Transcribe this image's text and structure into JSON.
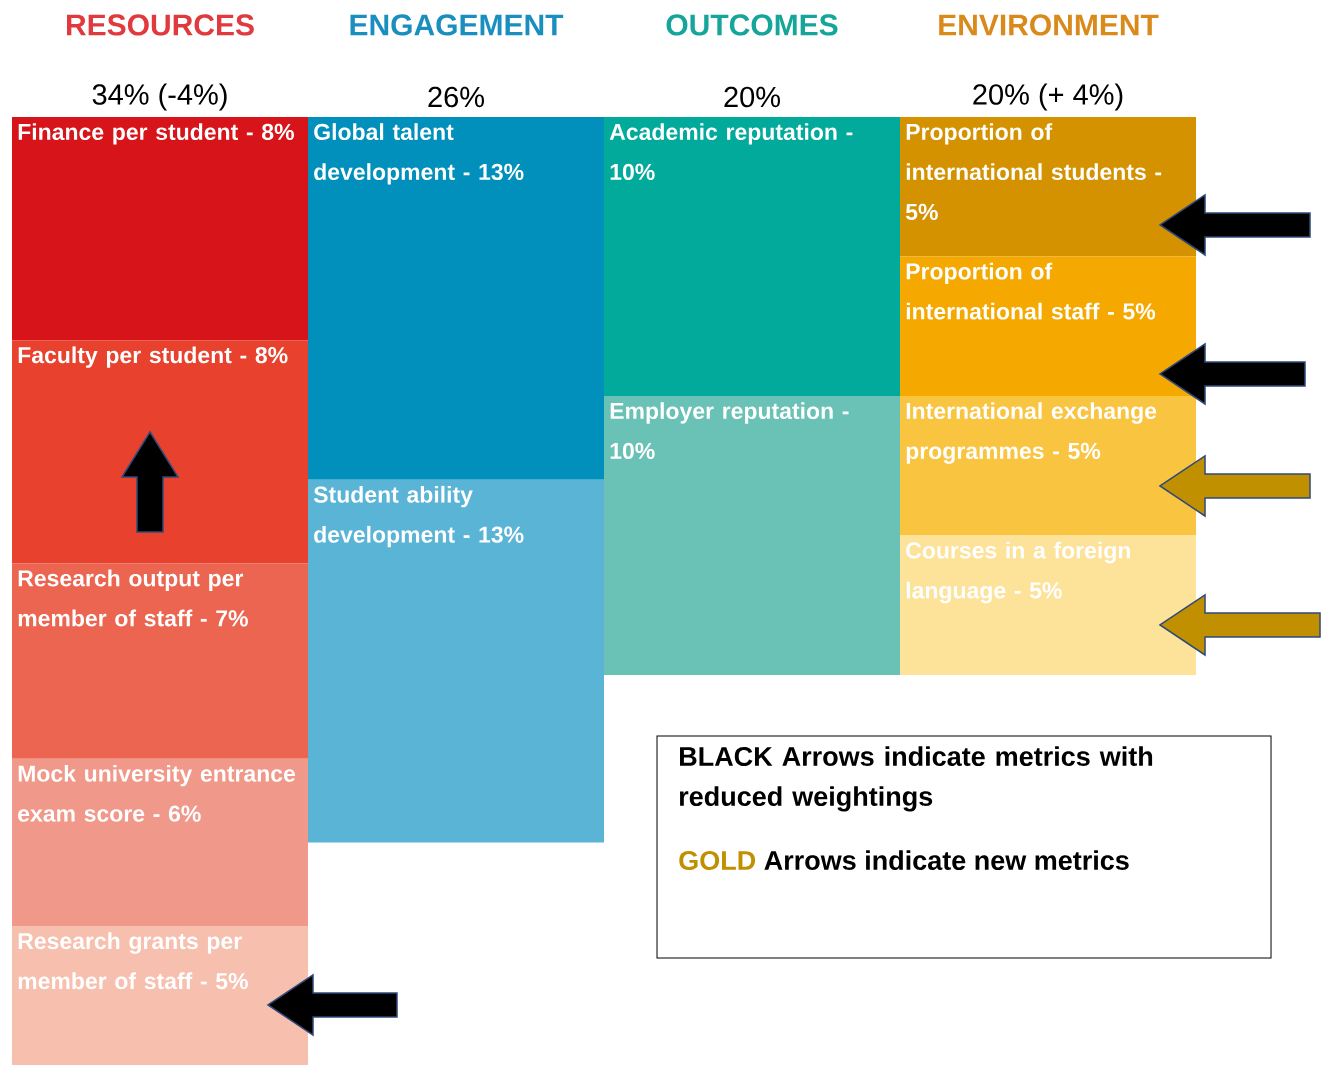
{
  "chart_data": {
    "type": "other",
    "categories": [
      "Finance per student -",
      "Faculty per student -",
      "Research output per member of staff -",
      "Mock university entrance exam score -",
      "Research grants per member of staff -",
      "Global talent development -",
      "Student ability development -",
      "Academic reputation -",
      "Employer reputation -",
      "Proportion of international students -",
      "Proportion of international staff -",
      "International exchange programmes -",
      "Courses in a foreign language -"
    ],
    "series": [
      {
        "name": "RESOURCES",
        "color": "#e03a3e",
        "values": [
          8,
          8,
          7,
          6,
          5,
          null,
          null,
          null,
          null,
          null,
          null,
          null,
          null
        ],
        "value_labels": [
          "8%",
          "8%",
          "7%",
          "6%",
          "5%",
          null,
          null,
          null,
          null,
          null,
          null,
          null,
          null
        ],
        "colors": [
          "#d7141a",
          "#e8412e",
          "#ec6550",
          "#f0998a",
          "#f6bfae",
          null,
          null,
          null,
          null,
          null,
          null,
          null,
          null
        ]
      },
      {
        "name": "ENGAGEMENT",
        "color": "#1a8fbf",
        "values": [
          null,
          null,
          null,
          null,
          null,
          13,
          13,
          null,
          null,
          null,
          null,
          null,
          null
        ],
        "value_labels": [
          null,
          null,
          null,
          null,
          null,
          "13%",
          "13%",
          null,
          null,
          null,
          null,
          null,
          null
        ],
        "colors": [
          null,
          null,
          null,
          null,
          null,
          "#0190bc",
          "#5ab4d6",
          null,
          null,
          null,
          null,
          null,
          null
        ]
      },
      {
        "name": "OUTCOMES",
        "color": "#16a59a",
        "values": [
          null,
          null,
          null,
          null,
          null,
          null,
          null,
          10,
          10,
          null,
          null,
          null,
          null
        ],
        "value_labels": [
          null,
          null,
          null,
          null,
          null,
          null,
          null,
          "10%",
          "10%",
          null,
          null,
          null,
          null
        ],
        "colors": [
          null,
          null,
          null,
          null,
          null,
          null,
          null,
          "#02aa9c",
          "#6ac1b5",
          null,
          null,
          null,
          null
        ]
      },
      {
        "name": "ENVIRONMENT",
        "color": "#d98a1a",
        "values": [
          null,
          null,
          null,
          null,
          null,
          null,
          null,
          null,
          null,
          5,
          5,
          5,
          5
        ],
        "value_labels": [
          null,
          null,
          null,
          null,
          null,
          null,
          null,
          null,
          null,
          "5%",
          "5%",
          "5%",
          "5%"
        ],
        "colors": [
          null,
          null,
          null,
          null,
          null,
          null,
          null,
          null,
          null,
          "#d49200",
          "#f5a800",
          "#f9c440",
          "#fde29a"
        ]
      }
    ],
    "totals": [
      "34% (-4%)",
      "26%",
      "20%",
      "20% (+ 4%)"
    ],
    "annotations": [
      "BLACK Arrows indicate metrics with reduced weightings",
      "GOLD",
      "Arrows indicate new metrics"
    ]
  }
}
